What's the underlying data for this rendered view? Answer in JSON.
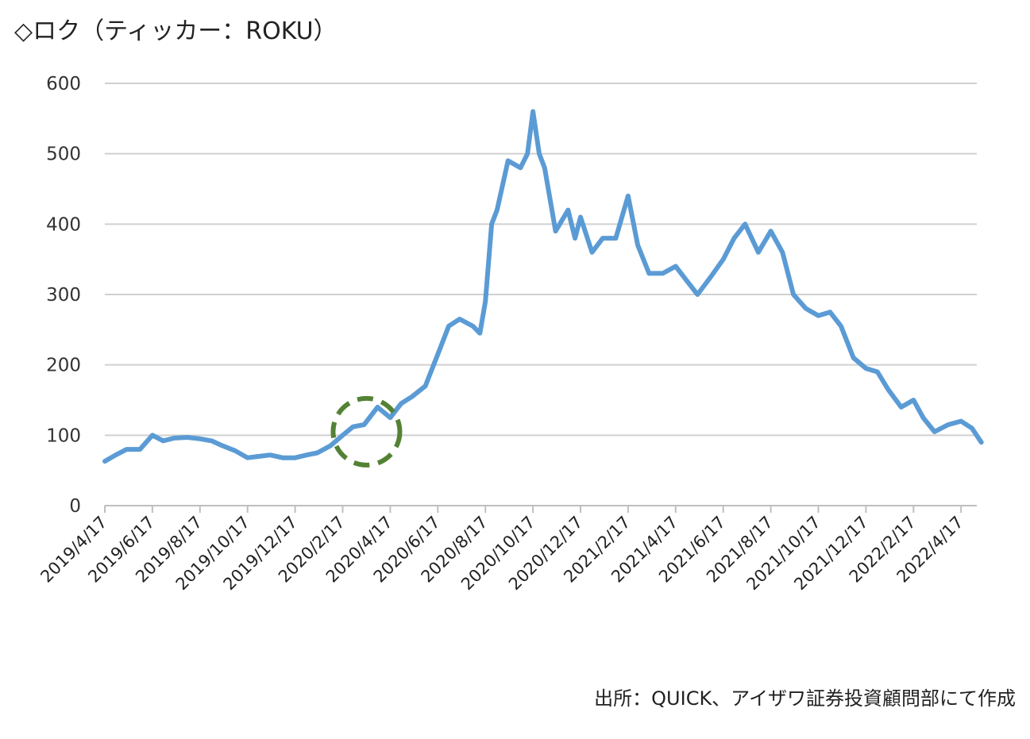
{
  "title": "◇ロク（ティッカー：ROKU）",
  "source": "出所：QUICK、アイザワ証券投資顧問部にて作成",
  "chart_data": {
    "type": "line",
    "ylim": [
      0,
      600
    ],
    "y_ticks": [
      0,
      100,
      200,
      300,
      400,
      500,
      600
    ],
    "x_tick_labels": [
      "2019/4/17",
      "2019/6/17",
      "2019/8/17",
      "2019/10/17",
      "2019/12/17",
      "2020/2/17",
      "2020/4/17",
      "2020/6/17",
      "2020/8/17",
      "2020/10/17",
      "2020/12/17",
      "2021/2/17",
      "2021/4/17",
      "2021/6/17",
      "2021/8/17",
      "2021/10/17",
      "2021/12/17",
      "2022/2/17",
      "2022/4/17"
    ],
    "grid": true,
    "line_color": "#5b9bd5",
    "annotation": {
      "type": "dashed-circle",
      "color": "#548235",
      "center_x": "2020/3/18",
      "center_y": 105
    },
    "series": [
      {
        "x": [
          "2019/4/17",
          "2019/5/1",
          "2019/5/15",
          "2019/6/1",
          "2019/6/17",
          "2019/7/1",
          "2019/7/15",
          "2019/8/1",
          "2019/8/17",
          "2019/9/1",
          "2019/9/15",
          "2019/10/1",
          "2019/10/17",
          "2019/11/1",
          "2019/11/15",
          "2019/12/1",
          "2019/12/17",
          "2020/1/1",
          "2020/1/15",
          "2020/2/1",
          "2020/2/17",
          "2020/3/1",
          "2020/3/15",
          "2020/4/1",
          "2020/4/17",
          "2020/5/1",
          "2020/5/15",
          "2020/6/1",
          "2020/6/17",
          "2020/7/1",
          "2020/7/15",
          "2020/8/1",
          "2020/8/10",
          "2020/8/17",
          "2020/8/25",
          "2020/9/1",
          "2020/9/15",
          "2020/10/1",
          "2020/10/10",
          "2020/10/17",
          "2020/10/25",
          "2020/11/1",
          "2020/11/15",
          "2020/12/1",
          "2020/12/10",
          "2020/12/17",
          "2021/1/1",
          "2021/1/15",
          "2021/2/1",
          "2021/2/17",
          "2021/3/1",
          "2021/3/15",
          "2021/4/1",
          "2021/4/17",
          "2021/5/1",
          "2021/5/15",
          "2021/6/1",
          "2021/6/17",
          "2021/7/1",
          "2021/7/15",
          "2021/8/1",
          "2021/8/17",
          "2021/9/1",
          "2021/9/15",
          "2021/10/1",
          "2021/10/17",
          "2021/11/1",
          "2021/11/15",
          "2021/12/1",
          "2021/12/17",
          "2022/1/1",
          "2022/1/15",
          "2022/2/1",
          "2022/2/17",
          "2022/3/1",
          "2022/3/15",
          "2022/4/1",
          "2022/4/17",
          "2022/5/1",
          "2022/5/13"
        ],
        "values": [
          63,
          72,
          80,
          80,
          100,
          92,
          96,
          97,
          95,
          92,
          85,
          78,
          68,
          70,
          72,
          68,
          68,
          72,
          75,
          85,
          100,
          112,
          115,
          140,
          125,
          145,
          155,
          170,
          215,
          255,
          265,
          255,
          245,
          290,
          400,
          420,
          490,
          480,
          500,
          560,
          500,
          480,
          390,
          420,
          380,
          410,
          360,
          380,
          380,
          440,
          370,
          330,
          330,
          340,
          320,
          300,
          325,
          350,
          380,
          400,
          360,
          390,
          360,
          300,
          280,
          270,
          275,
          255,
          210,
          195,
          190,
          165,
          140,
          150,
          125,
          105,
          115,
          120,
          110,
          90
        ]
      }
    ]
  }
}
